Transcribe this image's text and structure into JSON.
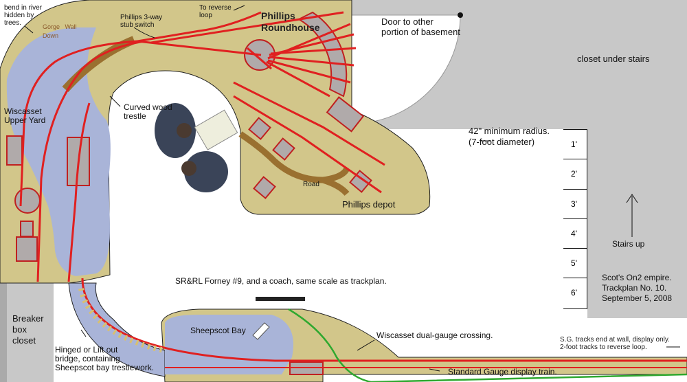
{
  "labels": {
    "bend_river": "bend in river\nhidden by\ntrees.",
    "gorge_wall": "Gorge   Wall\nDown",
    "phillips_switch": "Phillips 3-way\nstub switch",
    "reverse_loop": "To reverse\nloop",
    "roundhouse": "Phillips\nRoundhouse",
    "door": "Door to other\nportion of basement",
    "closet_stairs": "closet under stairs",
    "wiscasset_upper": "Wiscasset\nUpper Yard",
    "trestle": "Curved wood\ntrestle",
    "radius": "42\" minimum radius.\n(7-foot diameter)",
    "road": "Road",
    "depot": "Phillips depot",
    "stairs_up": "Stairs up",
    "forney": "SR&RL Forney #9, and a coach, same scale as trackplan.",
    "breaker": "Breaker\nbox\ncloset",
    "sheepscot_bay": "Sheepscot Bay",
    "dual_gauge": "Wiscasset dual-gauge crossing.",
    "hinged_bridge": "Hinged or Lift out\nbridge, containing\nSheepscot bay trestlework.",
    "sg_display": "Standard Gauge display train.",
    "sg_end": "S.G. tracks end at wall, display only.\n2-foot tracks to reverse loop.",
    "empire": "Scot's On2 empire.\nTrackplan No. 10.\nSeptember 5, 2008"
  },
  "ruler_marks": [
    "1'",
    "2'",
    "3'",
    "4'",
    "5'",
    "6'"
  ],
  "colors": {
    "scenery": "#d2c68a",
    "water": "#a9b4d8",
    "track_narrow": "#e02020",
    "track_standard": "#2fa82f",
    "gorge": "#9a7030",
    "road": "#9a7030",
    "closet": "#c8c8c8",
    "building": "#b0aaaa"
  }
}
